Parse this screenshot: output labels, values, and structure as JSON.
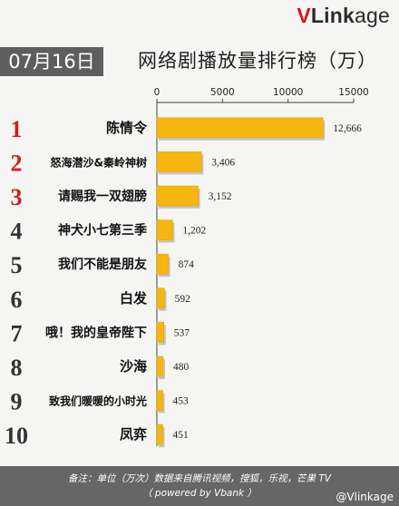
{
  "brand": {
    "logo_v": "V",
    "logo_link": "Link",
    "logo_rest": "age"
  },
  "date": "07月16日",
  "title": "网络剧播放量排行榜（万）",
  "footer": {
    "line1": "备注：单位（万次）数据来自腾讯视频，搜狐，乐视，芒果 TV",
    "line2": "（ powered by Vbank ）"
  },
  "watermark": "@Vlinkage",
  "colors": {
    "bar": "#f6b60f",
    "bar_shadow": "#9a9a9a",
    "rank_top3": "#cc1f1f",
    "rank_other": "#333333"
  },
  "chart_data": {
    "type": "bar",
    "orientation": "horizontal",
    "ranks": [
      "1",
      "2",
      "3",
      "4",
      "5",
      "6",
      "7",
      "8",
      "9",
      "10"
    ],
    "categories": [
      "陈情令",
      "怒海潜沙&秦岭神树",
      "请赐我一双翅膀",
      "神犬小七第三季",
      "我们不能是朋友",
      "白发",
      "哦！我的皇帝陛下",
      "沙海",
      "致我们暖暖的小时光",
      "凤弈"
    ],
    "values": [
      12666,
      3406,
      3152,
      1202,
      874,
      592,
      537,
      480,
      453,
      451
    ],
    "value_labels": [
      "12,666",
      "3,406",
      "3,152",
      "1,202",
      "874",
      "592",
      "537",
      "480",
      "453",
      "451"
    ],
    "xticks": [
      "0",
      "5000",
      "10000",
      "15000"
    ],
    "xlim": [
      0,
      15000
    ],
    "xaxis_position": "top",
    "grid": false,
    "legend": "none"
  }
}
